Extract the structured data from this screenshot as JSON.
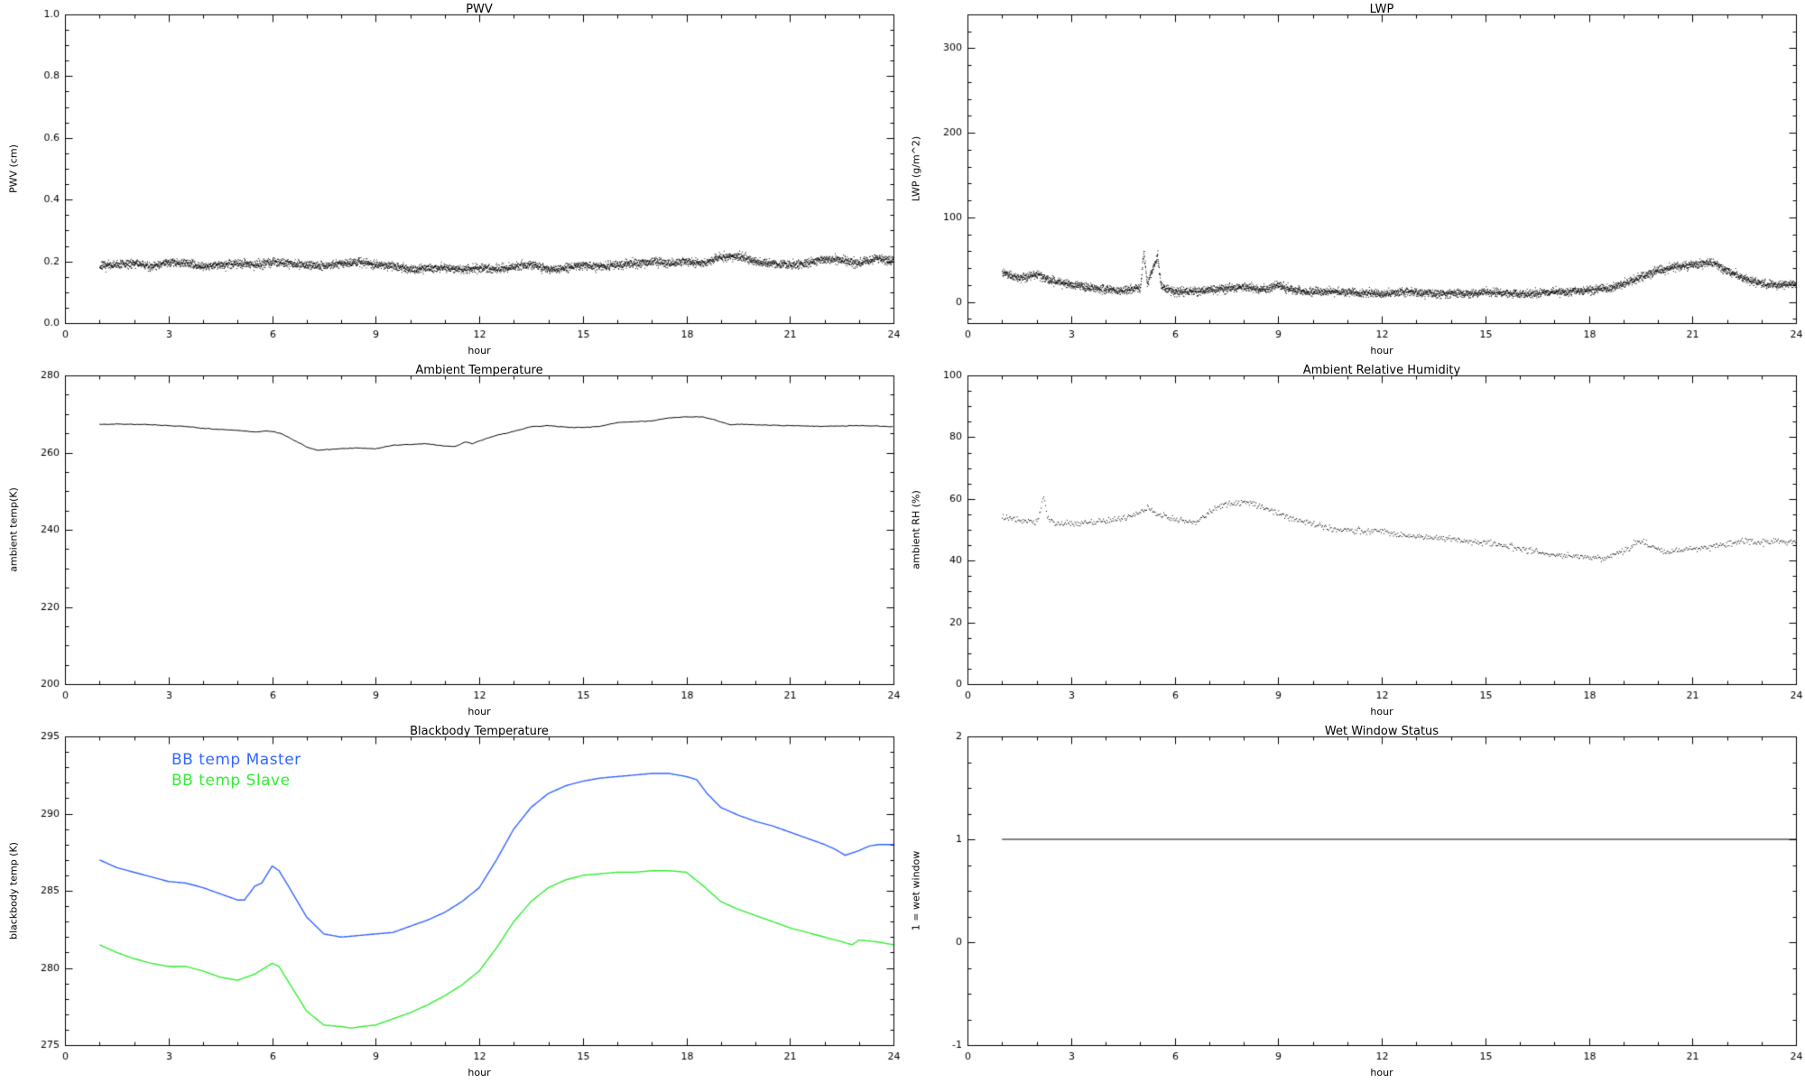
{
  "chart_data": [
    {
      "type": "scatter",
      "title": "PWV",
      "xlabel": "hour",
      "ylabel": "PWV (cm)",
      "xlim": [
        0,
        24
      ],
      "ylim": [
        0,
        1.0
      ],
      "xticks": {
        "values": [
          0,
          3,
          6,
          9,
          12,
          15,
          18,
          21,
          24
        ],
        "labels": [
          "0",
          "3",
          "6",
          "9",
          "12",
          "15",
          "18",
          "21",
          "24"
        ]
      },
      "yticks": {
        "values": [
          0.0,
          0.2,
          0.4,
          0.6,
          0.8,
          1.0
        ],
        "labels": [
          "0.0",
          "0.2",
          "0.4",
          "0.6",
          "0.8",
          "1.0"
        ]
      },
      "xminor": 1,
      "yminor": 0.05,
      "series": [
        {
          "name": "pwv",
          "mode": "dots",
          "color": "#000000",
          "noise": 0.01,
          "step": 0.01,
          "passes": 2,
          "x": [
            1,
            1.5,
            2,
            2.5,
            3,
            3.5,
            4,
            4.5,
            5,
            5.5,
            6,
            6.5,
            7,
            7.5,
            8,
            8.5,
            9,
            9.5,
            10,
            10.5,
            11,
            11.5,
            12,
            12.5,
            13,
            13.5,
            14,
            14.5,
            15,
            15.5,
            16,
            16.5,
            17,
            17.5,
            18,
            18.5,
            19,
            19.5,
            20,
            20.5,
            21,
            21.5,
            22,
            22.5,
            23,
            23.5,
            24
          ],
          "y": [
            0.185,
            0.19,
            0.195,
            0.185,
            0.2,
            0.195,
            0.185,
            0.19,
            0.195,
            0.19,
            0.2,
            0.195,
            0.19,
            0.185,
            0.195,
            0.2,
            0.19,
            0.185,
            0.175,
            0.18,
            0.18,
            0.175,
            0.18,
            0.175,
            0.185,
            0.19,
            0.175,
            0.18,
            0.19,
            0.185,
            0.19,
            0.195,
            0.2,
            0.195,
            0.2,
            0.195,
            0.215,
            0.22,
            0.2,
            0.195,
            0.19,
            0.195,
            0.21,
            0.205,
            0.195,
            0.21,
            0.205
          ]
        }
      ]
    },
    {
      "type": "scatter",
      "title": "LWP",
      "xlabel": "hour",
      "ylabel": "LWP (g/m^2)",
      "xlim": [
        0,
        24
      ],
      "ylim": [
        -25,
        340
      ],
      "xticks": {
        "values": [
          0,
          3,
          6,
          9,
          12,
          15,
          18,
          21,
          24
        ],
        "labels": [
          "0",
          "3",
          "6",
          "9",
          "12",
          "15",
          "18",
          "21",
          "24"
        ]
      },
      "yticks": {
        "values": [
          0,
          100,
          200,
          300
        ],
        "labels": [
          "0",
          "100",
          "200",
          "300"
        ]
      },
      "xminor": 1,
      "yminor": 20,
      "series": [
        {
          "name": "lwp",
          "mode": "dots",
          "color": "#000000",
          "noise": 3.5,
          "step": 0.01,
          "passes": 2,
          "x": [
            1,
            1.5,
            2,
            2.5,
            3,
            3.5,
            4,
            4.5,
            5,
            5.1,
            5.2,
            5.5,
            5.6,
            6,
            6.5,
            7,
            7.5,
            8,
            8.5,
            9,
            9.5,
            10,
            10.5,
            11,
            11.5,
            12,
            12.5,
            13,
            13.5,
            14,
            14.5,
            15,
            15.5,
            16,
            16.5,
            17,
            17.5,
            18,
            18.5,
            19,
            19.5,
            20,
            20.5,
            21,
            21.5,
            22,
            22.5,
            23,
            23.5,
            24
          ],
          "y": [
            35,
            28,
            33,
            25,
            20,
            18,
            15,
            14,
            18,
            60,
            22,
            55,
            18,
            12,
            13,
            15,
            17,
            18,
            15,
            20,
            14,
            12,
            13,
            12,
            11,
            10,
            12,
            12,
            10,
            11,
            10,
            12,
            11,
            10,
            11,
            12,
            13,
            14,
            16,
            22,
            30,
            38,
            42,
            44,
            47,
            38,
            28,
            22,
            20,
            22
          ]
        }
      ]
    },
    {
      "type": "line",
      "title": "Ambient Temperature",
      "xlabel": "hour",
      "ylabel": "ambient temp(K)",
      "xlim": [
        0,
        24
      ],
      "ylim": [
        200,
        280
      ],
      "xticks": {
        "values": [
          0,
          3,
          6,
          9,
          12,
          15,
          18,
          21,
          24
        ],
        "labels": [
          "0",
          "3",
          "6",
          "9",
          "12",
          "15",
          "18",
          "21",
          "24"
        ]
      },
      "yticks": {
        "values": [
          200,
          220,
          240,
          260,
          280
        ],
        "labels": [
          "200",
          "220",
          "240",
          "260",
          "280"
        ]
      },
      "xminor": 1,
      "yminor": 5,
      "series": [
        {
          "name": "ambient-temp",
          "mode": "line",
          "color": "#000000",
          "width": 1,
          "noise": 0.06,
          "step": 0.06,
          "x": [
            1,
            1.5,
            2,
            2.5,
            3,
            3.5,
            4,
            4.5,
            5,
            5.5,
            5.8,
            6,
            6.3,
            6.5,
            7,
            7.3,
            7.6,
            8,
            8.5,
            9,
            9.5,
            10,
            10.5,
            11,
            11.3,
            11.6,
            11.8,
            12,
            12.5,
            13,
            13.5,
            14,
            14.5,
            15,
            15.5,
            16,
            16.5,
            17,
            17.5,
            18,
            18.5,
            19,
            19.3,
            19.6,
            20,
            21,
            22,
            23,
            23.5,
            24
          ],
          "y": [
            267.3,
            267.4,
            267.3,
            267.2,
            267.0,
            266.8,
            266.3,
            266.0,
            265.8,
            265.3,
            265.6,
            265.5,
            264.8,
            263.8,
            261.5,
            260.6,
            260.8,
            261.0,
            261.2,
            261.0,
            261.9,
            262.1,
            262.3,
            261.7,
            261.6,
            262.8,
            262.3,
            263.0,
            264.5,
            265.5,
            266.7,
            267.0,
            266.6,
            266.5,
            266.8,
            267.8,
            268.0,
            268.2,
            269.0,
            269.3,
            269.2,
            268.0,
            267.2,
            267.3,
            267.2,
            267.0,
            266.8,
            267.0,
            266.9,
            266.7
          ]
        }
      ]
    },
    {
      "type": "scatter",
      "title": "Ambient Relative Humidity",
      "xlabel": "hour",
      "ylabel": "ambient RH (%)",
      "xlim": [
        0,
        24
      ],
      "ylim": [
        0,
        100
      ],
      "xticks": {
        "values": [
          0,
          3,
          6,
          9,
          12,
          15,
          18,
          21,
          24
        ],
        "labels": [
          "0",
          "3",
          "6",
          "9",
          "12",
          "15",
          "18",
          "21",
          "24"
        ]
      },
      "yticks": {
        "values": [
          0,
          20,
          40,
          60,
          80,
          100
        ],
        "labels": [
          "0",
          "20",
          "40",
          "60",
          "80",
          "100"
        ]
      },
      "xminor": 1,
      "yminor": 5,
      "series": [
        {
          "name": "ambient-rh",
          "mode": "dots",
          "color": "#000000",
          "noise": 0.7,
          "step": 0.025,
          "passes": 1,
          "x": [
            1,
            1.5,
            2,
            2.1,
            2.2,
            2.3,
            2.5,
            3,
            3.5,
            4,
            4.5,
            5,
            5.2,
            5.5,
            6,
            6.3,
            6.6,
            7,
            7.3,
            7.6,
            8,
            8.3,
            8.6,
            9,
            9.5,
            10,
            10.5,
            11,
            11.5,
            12,
            12.5,
            13,
            13.5,
            14,
            14.5,
            15,
            15.5,
            16,
            16.5,
            17,
            17.5,
            18,
            18.3,
            18.6,
            19,
            19.3,
            19.6,
            20,
            20.3,
            20.6,
            21,
            21.5,
            22,
            22.5,
            23,
            23.5,
            24
          ],
          "y": [
            54,
            53,
            52.5,
            56,
            61,
            54,
            52.5,
            52,
            52.5,
            53,
            54,
            55.5,
            57.5,
            55,
            53.5,
            53,
            52.5,
            56,
            57.5,
            58.5,
            59,
            58.5,
            57,
            55.5,
            53.5,
            52,
            50.5,
            50,
            49.5,
            49.8,
            48.5,
            48,
            47.5,
            47,
            46.5,
            46,
            45,
            44,
            43,
            42,
            41.5,
            41,
            41,
            41.5,
            43,
            45.5,
            46,
            43.5,
            43,
            43.5,
            44,
            44.5,
            45.5,
            46.5,
            46,
            46.5,
            46
          ]
        }
      ]
    },
    {
      "type": "line",
      "title": "Blackbody Temperature",
      "xlabel": "hour",
      "ylabel": "blackbody temp (K)",
      "xlim": [
        0,
        24
      ],
      "ylim": [
        275,
        295
      ],
      "xticks": {
        "values": [
          0,
          3,
          6,
          9,
          12,
          15,
          18,
          21,
          24
        ],
        "labels": [
          "0",
          "3",
          "6",
          "9",
          "12",
          "15",
          "18",
          "21",
          "24"
        ]
      },
      "yticks": {
        "values": [
          275,
          280,
          285,
          290,
          295
        ],
        "labels": [
          "275",
          "280",
          "285",
          "290",
          "295"
        ]
      },
      "xminor": 1,
      "yminor": 1,
      "legend": [
        {
          "label": "BB temp Master",
          "color": "#3366ff"
        },
        {
          "label": "BB temp Slave",
          "color": "#33ee33"
        }
      ],
      "series": [
        {
          "name": "bb-temp-master",
          "mode": "line",
          "color": "#3366ff",
          "width": 1.4,
          "step": 0.05,
          "x": [
            1,
            1.5,
            2,
            2.5,
            3,
            3.5,
            4,
            4.5,
            5,
            5.2,
            5.5,
            5.7,
            6,
            6.2,
            6.5,
            7,
            7.5,
            8,
            8.5,
            9,
            9.5,
            10,
            10.5,
            11,
            11.5,
            12,
            12.5,
            13,
            13.5,
            14,
            14.5,
            15,
            15.5,
            16,
            16.5,
            17,
            17.5,
            18,
            18.3,
            18.6,
            19,
            19.5,
            20,
            20.5,
            21,
            21.5,
            22,
            22.3,
            22.6,
            23,
            23.3,
            23.6,
            24
          ],
          "y": [
            287.0,
            286.5,
            286.2,
            285.9,
            285.6,
            285.5,
            285.2,
            284.8,
            284.4,
            284.4,
            285.3,
            285.5,
            286.6,
            286.3,
            285.2,
            283.3,
            282.2,
            282.0,
            282.1,
            282.2,
            282.3,
            282.7,
            283.1,
            283.6,
            284.3,
            285.2,
            287.0,
            289.0,
            290.4,
            291.3,
            291.8,
            292.1,
            292.3,
            292.4,
            292.5,
            292.6,
            292.6,
            292.4,
            292.2,
            291.3,
            290.4,
            289.9,
            289.5,
            289.2,
            288.8,
            288.4,
            288.0,
            287.7,
            287.3,
            287.6,
            287.9,
            288.0,
            288.0
          ]
        },
        {
          "name": "bb-temp-slave",
          "mode": "line",
          "color": "#33ee33",
          "width": 1.4,
          "step": 0.05,
          "x": [
            1,
            1.5,
            2,
            2.5,
            3,
            3.5,
            4,
            4.5,
            5,
            5.5,
            6,
            6.2,
            6.5,
            7,
            7.5,
            8,
            8.3,
            8.6,
            9,
            9.5,
            10,
            10.5,
            11,
            11.5,
            12,
            12.5,
            13,
            13.5,
            14,
            14.5,
            15,
            15.5,
            16,
            16.5,
            17,
            17.5,
            18,
            18.5,
            19,
            19.5,
            20,
            20.5,
            21,
            21.5,
            22,
            22.5,
            22.8,
            23,
            23.5,
            24
          ],
          "y": [
            281.5,
            281.0,
            280.6,
            280.3,
            280.1,
            280.1,
            279.8,
            279.4,
            279.2,
            279.6,
            280.3,
            280.1,
            279.0,
            277.2,
            276.3,
            276.2,
            276.1,
            276.2,
            276.3,
            276.7,
            277.1,
            277.6,
            278.2,
            278.9,
            279.8,
            281.3,
            283.0,
            284.3,
            285.2,
            285.7,
            286.0,
            286.1,
            286.2,
            286.2,
            286.3,
            286.3,
            286.2,
            285.3,
            284.3,
            283.8,
            283.4,
            283.0,
            282.6,
            282.3,
            282.0,
            281.7,
            281.5,
            281.8,
            281.7,
            281.5
          ]
        }
      ]
    },
    {
      "type": "line",
      "title": "Wet Window Status",
      "xlabel": "hour",
      "ylabel": "1 = wet window",
      "xlim": [
        0,
        24
      ],
      "ylim": [
        -1,
        2
      ],
      "xticks": {
        "values": [
          0,
          3,
          6,
          9,
          12,
          15,
          18,
          21,
          24
        ],
        "labels": [
          "0",
          "3",
          "6",
          "9",
          "12",
          "15",
          "18",
          "21",
          "24"
        ]
      },
      "yticks": {
        "values": [
          -1,
          0,
          1,
          2
        ],
        "labels": [
          "-1",
          "0",
          "1",
          "2"
        ]
      },
      "xminor": 1,
      "yminor": 0.25,
      "series": [
        {
          "name": "wet-window-flag",
          "mode": "line",
          "color": "#000000",
          "width": 1.2,
          "step": 0.5,
          "x": [
            1,
            24
          ],
          "y": [
            1,
            1
          ]
        }
      ]
    }
  ]
}
